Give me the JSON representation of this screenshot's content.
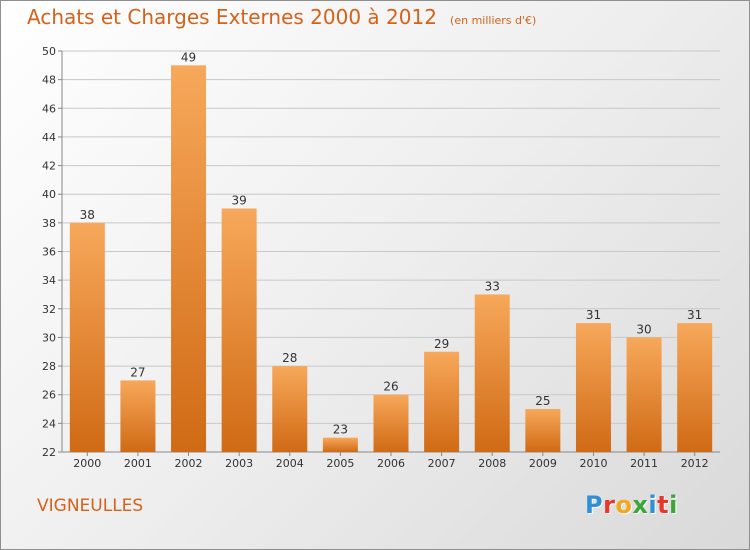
{
  "header": {
    "title": "Achats et Charges Externes 2000 à 2012",
    "subtitle": "(en milliers d'€)"
  },
  "footer": {
    "place_name": "VIGNEULLES",
    "brand": "Proxiti",
    "brand_colors": [
      "#2f8fd8",
      "#e8372a",
      "#f2a81d",
      "#3aa63a",
      "#2f8fd8",
      "#e8372a",
      "#3aa63a"
    ]
  },
  "colors": {
    "accent": "#d4621b",
    "bar_top": "#f7a85a",
    "bar_bottom": "#d06a15",
    "grid": "#c8c8c8"
  },
  "chart_data": {
    "type": "bar",
    "title": "Achats et Charges Externes 2000 à 2012",
    "subtitle": "(en milliers d'€)",
    "categories": [
      "2000",
      "2001",
      "2002",
      "2003",
      "2004",
      "2005",
      "2006",
      "2007",
      "2008",
      "2009",
      "2010",
      "2011",
      "2012"
    ],
    "values": [
      38,
      27,
      49,
      39,
      28,
      23,
      26,
      29,
      33,
      25,
      31,
      30,
      31
    ],
    "data_labels": [
      "38",
      "27",
      "49",
      "39",
      "28",
      "23",
      "26",
      "29",
      "33",
      "25",
      "31",
      "30",
      "31"
    ],
    "ylim": [
      22,
      50
    ],
    "y_ticks": [
      22,
      24,
      26,
      28,
      30,
      32,
      34,
      36,
      38,
      40,
      42,
      44,
      46,
      48,
      50
    ],
    "xlabel": "",
    "ylabel": "",
    "grid": true,
    "legend": "none"
  }
}
